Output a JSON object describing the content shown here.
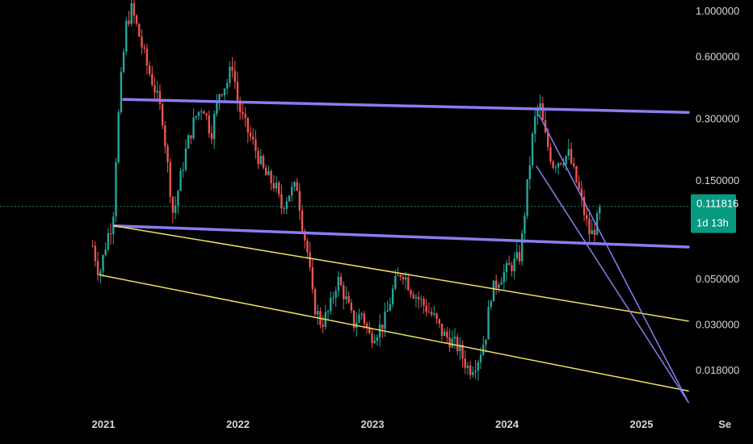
{
  "chart_data": {
    "type": "candlestick",
    "scale": "log",
    "ylim": [
      0.0125,
      1.12
    ],
    "xlim": [
      2020.75,
      2025.65
    ],
    "y_ticks": [
      {
        "value": 1.0,
        "label": "1.000000"
      },
      {
        "value": 0.6,
        "label": "0.600000"
      },
      {
        "value": 0.3,
        "label": "0.300000"
      },
      {
        "value": 0.15,
        "label": "0.150000"
      },
      {
        "value": 0.05,
        "label": "0.050000"
      },
      {
        "value": 0.03,
        "label": "0.030000"
      },
      {
        "value": 0.018,
        "label": "0.018000"
      }
    ],
    "x_ticks": [
      {
        "value": 2021.0,
        "label": "2021"
      },
      {
        "value": 2022.0,
        "label": "2022"
      },
      {
        "value": 2023.0,
        "label": "2023"
      },
      {
        "value": 2024.0,
        "label": "2024"
      },
      {
        "value": 2025.0,
        "label": "2025"
      },
      {
        "value": 2025.62,
        "label": "Se"
      }
    ],
    "current_price": {
      "value": 0.111816,
      "label": "0.111816",
      "countdown": "1d 13h"
    },
    "colors": {
      "up": "#26a69a",
      "down": "#ef5350",
      "channel_purple": "#8b7cf0",
      "trend_yellow": "#f0e060",
      "price_line": "#26a69a",
      "price_tag_bg": "#089981",
      "axis_text": "#d6d6d6",
      "background": "#000000"
    },
    "price_path": [
      [
        2020.92,
        0.072
      ],
      [
        2020.97,
        0.052
      ],
      [
        2021.03,
        0.08
      ],
      [
        2021.07,
        0.095
      ],
      [
        2021.1,
        0.24
      ],
      [
        2021.13,
        0.45
      ],
      [
        2021.17,
        0.85
      ],
      [
        2021.21,
        1.02
      ],
      [
        2021.26,
        0.78
      ],
      [
        2021.32,
        0.55
      ],
      [
        2021.38,
        0.42
      ],
      [
        2021.44,
        0.3
      ],
      [
        2021.48,
        0.17
      ],
      [
        2021.52,
        0.1
      ],
      [
        2021.56,
        0.14
      ],
      [
        2021.62,
        0.22
      ],
      [
        2021.68,
        0.3
      ],
      [
        2021.74,
        0.35
      ],
      [
        2021.8,
        0.25
      ],
      [
        2021.86,
        0.4
      ],
      [
        2021.92,
        0.45
      ],
      [
        2021.96,
        0.55
      ],
      [
        2022.0,
        0.35
      ],
      [
        2022.05,
        0.28
      ],
      [
        2022.12,
        0.22
      ],
      [
        2022.2,
        0.16
      ],
      [
        2022.28,
        0.14
      ],
      [
        2022.32,
        0.11
      ],
      [
        2022.38,
        0.13
      ],
      [
        2022.44,
        0.14
      ],
      [
        2022.48,
        0.09
      ],
      [
        2022.52,
        0.065
      ],
      [
        2022.56,
        0.038
      ],
      [
        2022.62,
        0.03
      ],
      [
        2022.68,
        0.035
      ],
      [
        2022.74,
        0.05
      ],
      [
        2022.8,
        0.04
      ],
      [
        2022.86,
        0.03
      ],
      [
        2022.92,
        0.034
      ],
      [
        2022.98,
        0.026
      ],
      [
        2023.04,
        0.028
      ],
      [
        2023.1,
        0.032
      ],
      [
        2023.16,
        0.046
      ],
      [
        2023.22,
        0.055
      ],
      [
        2023.28,
        0.045
      ],
      [
        2023.34,
        0.04
      ],
      [
        2023.4,
        0.036
      ],
      [
        2023.46,
        0.032
      ],
      [
        2023.52,
        0.027
      ],
      [
        2023.58,
        0.025
      ],
      [
        2023.64,
        0.023
      ],
      [
        2023.68,
        0.02
      ],
      [
        2023.72,
        0.018
      ],
      [
        2023.78,
        0.02
      ],
      [
        2023.84,
        0.026
      ],
      [
        2023.88,
        0.042
      ],
      [
        2023.94,
        0.05
      ],
      [
        2024.0,
        0.055
      ],
      [
        2024.06,
        0.06
      ],
      [
        2024.1,
        0.065
      ],
      [
        2024.14,
        0.12
      ],
      [
        2024.2,
        0.28
      ],
      [
        2024.24,
        0.36
      ],
      [
        2024.28,
        0.25
      ],
      [
        2024.34,
        0.18
      ],
      [
        2024.4,
        0.19
      ],
      [
        2024.46,
        0.2
      ],
      [
        2024.5,
        0.16
      ],
      [
        2024.54,
        0.13
      ],
      [
        2024.58,
        0.1
      ],
      [
        2024.62,
        0.08
      ],
      [
        2024.66,
        0.09
      ],
      [
        2024.7,
        0.111816
      ]
    ],
    "trendlines": [
      {
        "points": [
          [
            2021.15,
            0.37
          ],
          [
            2025.65,
            0.32
          ]
        ],
        "color": "purple",
        "width": 3.5
      },
      {
        "points": [
          [
            2021.08,
            0.09
          ],
          [
            2025.65,
            0.071
          ]
        ],
        "color": "purple",
        "width": 3.5
      },
      {
        "points": [
          [
            2021.08,
            0.09
          ],
          [
            2025.65,
            0.031
          ]
        ],
        "color": "yellow",
        "width": 1.5
      },
      {
        "points": [
          [
            2020.97,
            0.052
          ],
          [
            2025.65,
            0.0142
          ]
        ],
        "color": "yellow",
        "width": 1.5
      },
      {
        "points": [
          [
            2024.24,
            0.31
          ],
          [
            2025.55,
            0.0125
          ]
        ],
        "color": "purple",
        "width": 1.5
      },
      {
        "points": [
          [
            2024.22,
            0.175
          ],
          [
            2025.36,
            0.0125
          ]
        ],
        "color": "purple",
        "width": 1.5
      }
    ]
  }
}
